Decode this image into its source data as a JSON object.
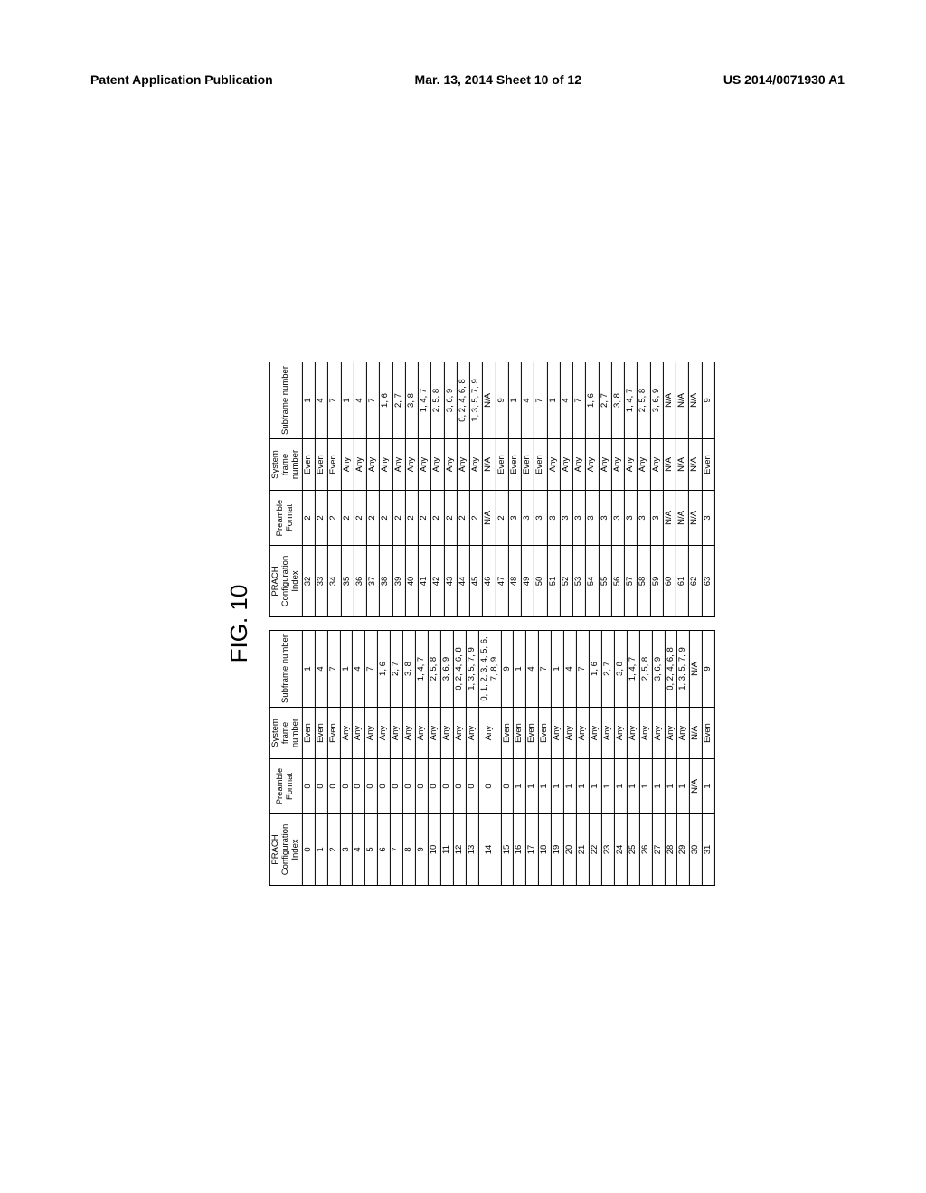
{
  "header": {
    "left": "Patent Application Publication",
    "center": "Mar. 13, 2014  Sheet 10 of 12",
    "right": "US 2014/0071930 A1"
  },
  "figure": {
    "title": "FIG. 10",
    "columns": [
      "PRACH Configuration Index",
      "Preamble Format",
      "System frame number",
      "Subframe number"
    ]
  },
  "table1": [
    [
      "0",
      "0",
      "Even",
      "1"
    ],
    [
      "1",
      "0",
      "Even",
      "4"
    ],
    [
      "2",
      "0",
      "Even",
      "7"
    ],
    [
      "3",
      "0",
      "Any",
      "1"
    ],
    [
      "4",
      "0",
      "Any",
      "4"
    ],
    [
      "5",
      "0",
      "Any",
      "7"
    ],
    [
      "6",
      "0",
      "Any",
      "1, 6"
    ],
    [
      "7",
      "0",
      "Any",
      "2, 7"
    ],
    [
      "8",
      "0",
      "Any",
      "3, 8"
    ],
    [
      "9",
      "0",
      "Any",
      "1, 4, 7"
    ],
    [
      "10",
      "0",
      "Any",
      "2, 5, 8"
    ],
    [
      "11",
      "0",
      "Any",
      "3, 6, 9"
    ],
    [
      "12",
      "0",
      "Any",
      "0, 2, 4, 6, 8"
    ],
    [
      "13",
      "0",
      "Any",
      "1, 3, 5, 7, 9"
    ],
    [
      "14",
      "0",
      "Any",
      "0, 1, 2, 3, 4, 5, 6, 7, 8, 9"
    ],
    [
      "15",
      "0",
      "Even",
      "9"
    ],
    [
      "16",
      "1",
      "Even",
      "1"
    ],
    [
      "17",
      "1",
      "Even",
      "4"
    ],
    [
      "18",
      "1",
      "Even",
      "7"
    ],
    [
      "19",
      "1",
      "Any",
      "1"
    ],
    [
      "20",
      "1",
      "Any",
      "4"
    ],
    [
      "21",
      "1",
      "Any",
      "7"
    ],
    [
      "22",
      "1",
      "Any",
      "1, 6"
    ],
    [
      "23",
      "1",
      "Any",
      "2, 7"
    ],
    [
      "24",
      "1",
      "Any",
      "3, 8"
    ],
    [
      "25",
      "1",
      "Any",
      "1, 4, 7"
    ],
    [
      "26",
      "1",
      "Any",
      "2, 5, 8"
    ],
    [
      "27",
      "1",
      "Any",
      "3, 6, 9"
    ],
    [
      "28",
      "1",
      "Any",
      "0, 2, 4, 6, 8"
    ],
    [
      "29",
      "1",
      "Any",
      "1, 3, 5, 7, 9"
    ],
    [
      "30",
      "N/A",
      "N/A",
      "N/A"
    ],
    [
      "31",
      "1",
      "Even",
      "9"
    ]
  ],
  "table2": [
    [
      "32",
      "2",
      "Even",
      "1"
    ],
    [
      "33",
      "2",
      "Even",
      "4"
    ],
    [
      "34",
      "2",
      "Even",
      "7"
    ],
    [
      "35",
      "2",
      "Any",
      "1"
    ],
    [
      "36",
      "2",
      "Any",
      "4"
    ],
    [
      "37",
      "2",
      "Any",
      "7"
    ],
    [
      "38",
      "2",
      "Any",
      "1, 6"
    ],
    [
      "39",
      "2",
      "Any",
      "2, 7"
    ],
    [
      "40",
      "2",
      "Any",
      "3, 8"
    ],
    [
      "41",
      "2",
      "Any",
      "1, 4, 7"
    ],
    [
      "42",
      "2",
      "Any",
      "2, 5, 8"
    ],
    [
      "43",
      "2",
      "Any",
      "3, 6, 9"
    ],
    [
      "44",
      "2",
      "Any",
      "0, 2, 4, 6, 8"
    ],
    [
      "45",
      "2",
      "Any",
      "1, 3, 5, 7, 9"
    ],
    [
      "46",
      "N/A",
      "N/A",
      "N/A"
    ],
    [
      "47",
      "2",
      "Even",
      "9"
    ],
    [
      "48",
      "3",
      "Even",
      "1"
    ],
    [
      "49",
      "3",
      "Even",
      "4"
    ],
    [
      "50",
      "3",
      "Even",
      "7"
    ],
    [
      "51",
      "3",
      "Any",
      "1"
    ],
    [
      "52",
      "3",
      "Any",
      "4"
    ],
    [
      "53",
      "3",
      "Any",
      "7"
    ],
    [
      "54",
      "3",
      "Any",
      "1, 6"
    ],
    [
      "55",
      "3",
      "Any",
      "2, 7"
    ],
    [
      "56",
      "3",
      "Any",
      "3, 8"
    ],
    [
      "57",
      "3",
      "Any",
      "1, 4, 7"
    ],
    [
      "58",
      "3",
      "Any",
      "2, 5, 8"
    ],
    [
      "59",
      "3",
      "Any",
      "3, 6, 9"
    ],
    [
      "60",
      "N/A",
      "N/A",
      "N/A"
    ],
    [
      "61",
      "N/A",
      "N/A",
      "N/A"
    ],
    [
      "62",
      "N/A",
      "N/A",
      "N/A"
    ],
    [
      "63",
      "3",
      "Even",
      "9"
    ]
  ]
}
